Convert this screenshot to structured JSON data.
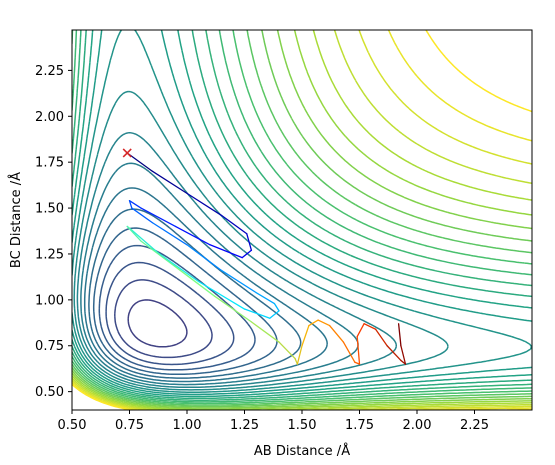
{
  "chart_data": {
    "type": "contour",
    "xlabel": "AB Distance /Å",
    "ylabel": "BC Distance /Å",
    "xlim": [
      0.5,
      2.5
    ],
    "ylim": [
      0.4,
      2.47
    ],
    "x_ticks": [
      0.5,
      0.75,
      1.0,
      1.25,
      1.5,
      1.75,
      2.0,
      2.25
    ],
    "x_tick_labels": [
      "0.50",
      "0.75",
      "1.00",
      "1.25",
      "1.50",
      "1.75",
      "2.00",
      "2.25"
    ],
    "y_ticks": [
      0.5,
      0.75,
      1.0,
      1.25,
      1.5,
      1.75,
      2.0,
      2.25
    ],
    "y_tick_labels": [
      "0.50",
      "0.75",
      "1.00",
      "1.25",
      "1.50",
      "1.75",
      "2.00",
      "2.25"
    ],
    "surface": {
      "description_free": true,
      "min_ab": 0.74,
      "min_bc": 0.74,
      "contour_count": 32,
      "colormap": [
        "#440154",
        "#46327e",
        "#365c8d",
        "#277f8e",
        "#1fa187",
        "#4ac16d",
        "#a0da39",
        "#fde725"
      ]
    },
    "start_marker": {
      "x": 0.74,
      "y": 1.8,
      "color": "#d62728"
    },
    "trajectory": {
      "colormap": [
        "#00007f",
        "#0000ff",
        "#007fff",
        "#00e5ff",
        "#7fff7f",
        "#ffb000",
        "#ff4000",
        "#7f0000"
      ],
      "points": [
        [
          0.74,
          1.8
        ],
        [
          0.85,
          1.7
        ],
        [
          1.0,
          1.58
        ],
        [
          1.15,
          1.46
        ],
        [
          1.26,
          1.36
        ],
        [
          1.28,
          1.27
        ],
        [
          1.24,
          1.23
        ],
        [
          1.1,
          1.3
        ],
        [
          0.95,
          1.4
        ],
        [
          0.8,
          1.5
        ],
        [
          0.75,
          1.54
        ],
        [
          0.76,
          1.5
        ],
        [
          0.85,
          1.42
        ],
        [
          1.0,
          1.3
        ],
        [
          1.15,
          1.16
        ],
        [
          1.3,
          1.04
        ],
        [
          1.38,
          0.98
        ],
        [
          1.4,
          0.94
        ],
        [
          1.36,
          0.9
        ],
        [
          1.25,
          0.95
        ],
        [
          1.05,
          1.1
        ],
        [
          0.88,
          1.25
        ],
        [
          0.76,
          1.38
        ],
        [
          0.74,
          1.4
        ],
        [
          0.8,
          1.32
        ],
        [
          0.95,
          1.18
        ],
        [
          1.12,
          1.02
        ],
        [
          1.28,
          0.88
        ],
        [
          1.4,
          0.77
        ],
        [
          1.47,
          0.68
        ],
        [
          1.48,
          0.65
        ],
        [
          1.5,
          0.75
        ],
        [
          1.53,
          0.86
        ],
        [
          1.57,
          0.89
        ],
        [
          1.62,
          0.86
        ],
        [
          1.68,
          0.77
        ],
        [
          1.73,
          0.66
        ],
        [
          1.75,
          0.65
        ],
        [
          1.74,
          0.8
        ],
        [
          1.77,
          0.87
        ],
        [
          1.82,
          0.84
        ],
        [
          1.87,
          0.75
        ],
        [
          1.93,
          0.67
        ],
        [
          1.95,
          0.65
        ],
        [
          1.93,
          0.75
        ],
        [
          1.92,
          0.87
        ]
      ]
    }
  }
}
